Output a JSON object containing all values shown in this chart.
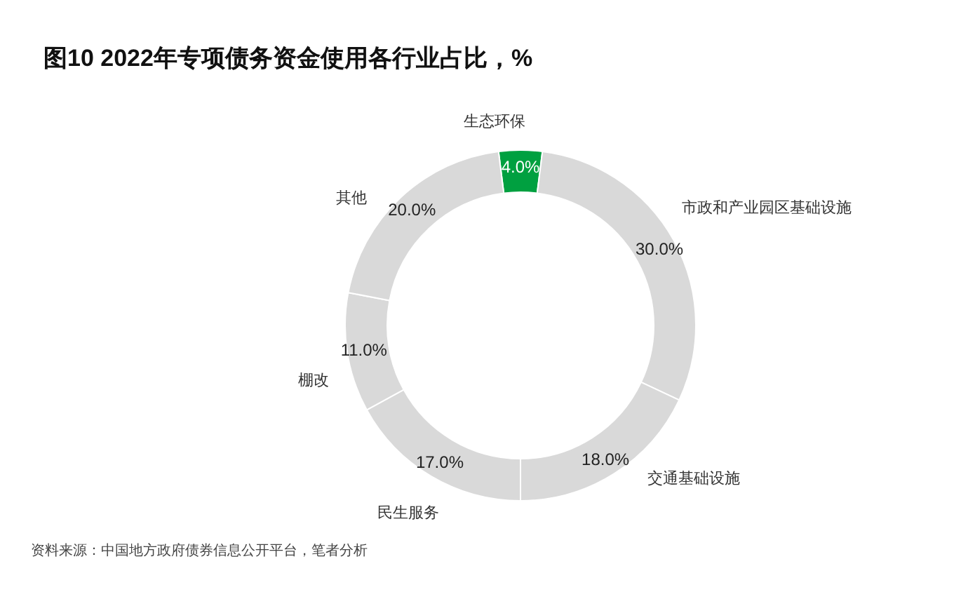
{
  "chart_data": {
    "type": "donut",
    "title": "图10 2022年专项债务资金使用各行业占比，%",
    "categories": [
      "生态环保",
      "市政和产业园区基础设施",
      "交通基础设施",
      "民生服务",
      "棚改",
      "其他"
    ],
    "values": [
      4,
      30,
      18,
      17,
      11,
      20
    ],
    "colors": [
      "#00a040",
      "#d9d9d9",
      "#d9d9d9",
      "#d9d9d9",
      "#d9d9d9",
      "#d9d9d9"
    ],
    "value_labels": [
      "4.0%",
      "30.0%",
      "18.0%",
      "17.0%",
      "11.0%",
      "20.0%"
    ],
    "annotations": [
      "资料来源：中国地方政府债券信息公开平台，笔者分析"
    ]
  }
}
